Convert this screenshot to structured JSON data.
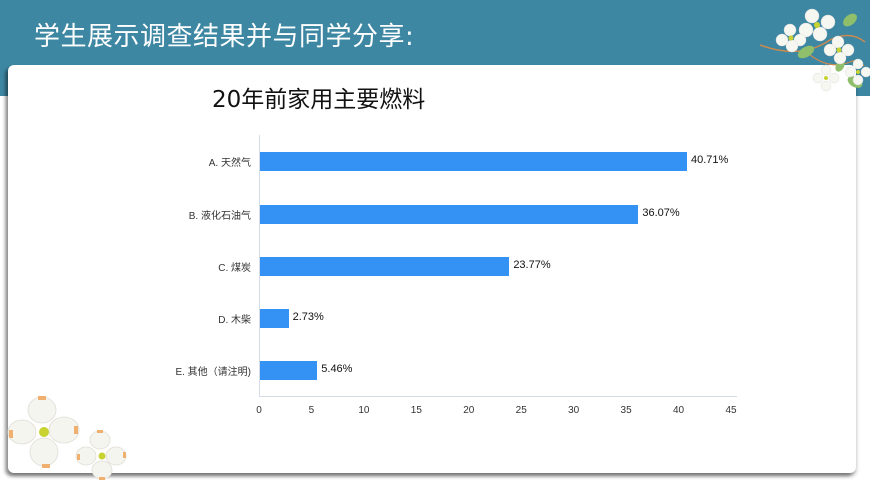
{
  "slide": {
    "title": "学生展示调查结果并与同学分享:",
    "header_color": "#3d87a3"
  },
  "chart_data": {
    "type": "bar",
    "orientation": "horizontal",
    "title": "20年前家用主要燃料",
    "categories": [
      "A. 天然气",
      "B. 液化石油气",
      "C. 煤炭",
      "D. 木柴",
      "E. 其他（请注明)"
    ],
    "values": [
      40.71,
      36.07,
      23.77,
      2.73,
      5.46
    ],
    "value_labels": [
      "40.71%",
      "36.07%",
      "23.77%",
      "2.73%",
      "5.46%"
    ],
    "xlabel": "",
    "ylabel": "",
    "xlim": [
      0,
      45
    ],
    "x_ticks": [
      "0",
      "5",
      "10",
      "15",
      "20",
      "25",
      "30",
      "35",
      "40",
      "45"
    ],
    "bar_color": "#3592f5",
    "grid": false,
    "legend": null
  },
  "decorations": {
    "top_right": "dogwood-flower-branch",
    "bottom_left": "dogwood-flowers"
  }
}
